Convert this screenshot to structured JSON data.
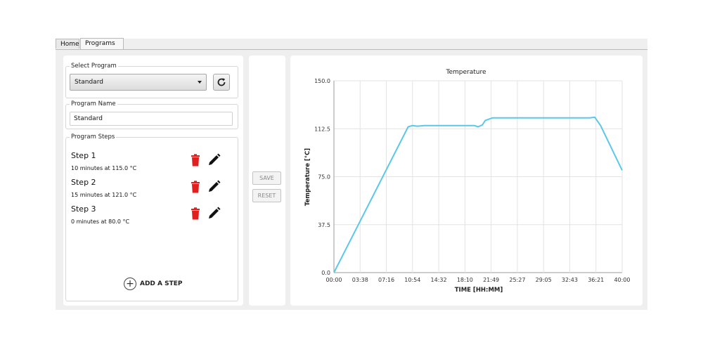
{
  "tabs": [
    {
      "label": "Home",
      "active": false
    },
    {
      "label": "Programs",
      "active": true
    }
  ],
  "select_program": {
    "group_title": "Select Program",
    "selected_value": "Standard"
  },
  "program_name": {
    "group_title": "Program Name",
    "value": "Standard"
  },
  "program_steps": {
    "group_title": "Program Steps",
    "steps": [
      {
        "title": "Step 1",
        "description": "10 minutes at 115.0 °C"
      },
      {
        "title": "Step 2",
        "description": "15 minutes at 121.0 °C"
      },
      {
        "title": "Step 3",
        "description": "0 minutes at 80.0 °C"
      }
    ],
    "add_step_label": "ADD A STEP"
  },
  "actions": {
    "save_label": "SAVE",
    "reset_label": "RESET"
  },
  "colors": {
    "trash": "#e0201f",
    "line": "#5bc7ea",
    "grid": "#e3e3e3"
  },
  "chart_data": {
    "type": "line",
    "title": "Temperature",
    "xlabel": "TIME [HH:MM]",
    "ylabel": "Temperature [°C]",
    "x_ticks": [
      "00:00",
      "03:38",
      "07:16",
      "10:54",
      "14:32",
      "18:10",
      "21:49",
      "25:27",
      "29:05",
      "32:43",
      "36:21",
      "40:00"
    ],
    "y_ticks": [
      "0.0",
      "37.5",
      "75.0",
      "112.5",
      "150.0"
    ],
    "xlim": [
      0,
      40
    ],
    "ylim": [
      0,
      150
    ],
    "grid": true,
    "series": [
      {
        "x": [
          0,
          10.3,
          10.9,
          11.6,
          12.5,
          18.5,
          19.5,
          20.0,
          20.6,
          21.0,
          22.0,
          34.0,
          35.5,
          36.2,
          37.0,
          40.0
        ],
        "y": [
          0,
          114.0,
          115.0,
          114.5,
          115.0,
          115.0,
          115.0,
          114.0,
          115.5,
          119.0,
          121.0,
          121.0,
          121.0,
          121.5,
          115.0,
          80.0
        ]
      }
    ]
  }
}
